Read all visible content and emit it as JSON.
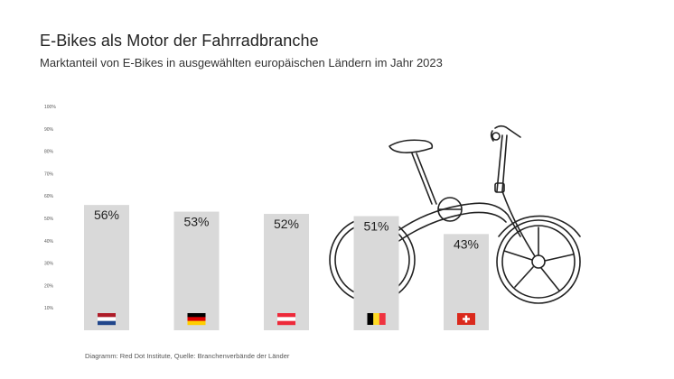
{
  "title": "E-Bikes als Motor der Fahrradbranche",
  "subtitle": "Marktanteil von E-Bikes in ausgewählten europäischen Ländern im Jahr 2023",
  "source": "Diagramm: Red Dot Institute, Quelle: Branchenverbände der Länder",
  "colors": {
    "bar": "#d9d9d9",
    "text": "#222222",
    "bike": "#222222"
  },
  "chart_data": {
    "type": "bar",
    "title": "E-Bikes als Motor der Fahrradbranche",
    "subtitle": "Marktanteil von E-Bikes in ausgewählten europäischen Ländern im Jahr 2023",
    "xlabel": "",
    "ylabel": "",
    "ylim": [
      0,
      100
    ],
    "yticks": [
      "10%",
      "20%",
      "30%",
      "40%",
      "50%",
      "60%",
      "70%",
      "80%",
      "90%",
      "100%"
    ],
    "grid": false,
    "categories": [
      "Niederlande",
      "Deutschland",
      "Österreich",
      "Belgien",
      "Schweiz"
    ],
    "flags": [
      "flag-nl-icon",
      "flag-de-icon",
      "flag-at-icon",
      "flag-be-icon",
      "flag-ch-icon"
    ],
    "values": [
      56,
      53,
      52,
      51,
      43
    ],
    "value_labels": [
      "56%",
      "53%",
      "52%",
      "51%",
      "43%"
    ]
  }
}
